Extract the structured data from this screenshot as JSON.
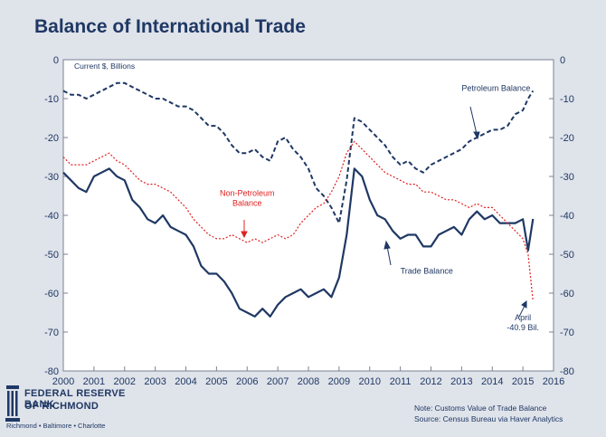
{
  "title": "Balance of International Trade",
  "logo": {
    "line1": "FEDERAL RESERVE BANK",
    "line2": "OF RICHMOND",
    "cities": "Richmond • Baltimore • Charlotte"
  },
  "notes": {
    "note": "Note: Customs Value of Trade Balance",
    "source": "Source: Census Bureau via Haver Analytics"
  },
  "colors": {
    "background": "#dfe3ea",
    "navy": "#1f3864",
    "red": "#e02020"
  },
  "chart_data": {
    "type": "line",
    "ylabel": "Current $, Billions",
    "ylim": [
      -80,
      0
    ],
    "xlim": [
      2000,
      2016
    ],
    "y_ticks": [
      "0",
      "-10",
      "-20",
      "-30",
      "-40",
      "-50",
      "-60",
      "-70",
      "-80"
    ],
    "x_ticks": [
      "2000",
      "2001",
      "2002",
      "2003",
      "2004",
      "2005",
      "2006",
      "2007",
      "2008",
      "2009",
      "2010",
      "2011",
      "2012",
      "2013",
      "2014",
      "2015",
      "2016"
    ],
    "grid": false,
    "series": [
      {
        "name": "Trade Balance",
        "style": "solid",
        "color": "#1f3864",
        "x": [
          2000.0,
          2000.25,
          2000.5,
          2000.75,
          2001.0,
          2001.25,
          2001.5,
          2001.75,
          2002.0,
          2002.25,
          2002.5,
          2002.75,
          2003.0,
          2003.25,
          2003.5,
          2003.75,
          2004.0,
          2004.25,
          2004.5,
          2004.75,
          2005.0,
          2005.25,
          2005.5,
          2005.75,
          2006.0,
          2006.25,
          2006.5,
          2006.75,
          2007.0,
          2007.25,
          2007.5,
          2007.75,
          2008.0,
          2008.25,
          2008.5,
          2008.75,
          2009.0,
          2009.25,
          2009.5,
          2009.75,
          2010.0,
          2010.25,
          2010.5,
          2010.75,
          2011.0,
          2011.25,
          2011.5,
          2011.75,
          2012.0,
          2012.25,
          2012.5,
          2012.75,
          2013.0,
          2013.25,
          2013.5,
          2013.75,
          2014.0,
          2014.25,
          2014.5,
          2014.75,
          2015.0,
          2015.17,
          2015.33
        ],
        "values": [
          -29,
          -31,
          -33,
          -34,
          -30,
          -29,
          -28,
          -30,
          -31,
          -36,
          -38,
          -41,
          -42,
          -40,
          -43,
          -44,
          -45,
          -48,
          -53,
          -55,
          -55,
          -57,
          -60,
          -64,
          -65,
          -66,
          -64,
          -66,
          -63,
          -61,
          -60,
          -59,
          -61,
          -60,
          -59,
          -61,
          -56,
          -45,
          -28,
          -30,
          -36,
          -40,
          -41,
          -44,
          -46,
          -45,
          -45,
          -48,
          -48,
          -45,
          -44,
          -43,
          -45,
          -41,
          -39,
          -41,
          -40,
          -42,
          -42,
          -42,
          -41,
          -49,
          -40.9
        ]
      },
      {
        "name": "Petroleum Balance",
        "style": "dashed",
        "color": "#1f3864",
        "x": [
          2000.0,
          2000.25,
          2000.5,
          2000.75,
          2001.0,
          2001.25,
          2001.5,
          2001.75,
          2002.0,
          2002.25,
          2002.5,
          2002.75,
          2003.0,
          2003.25,
          2003.5,
          2003.75,
          2004.0,
          2004.25,
          2004.5,
          2004.75,
          2005.0,
          2005.25,
          2005.5,
          2005.75,
          2006.0,
          2006.25,
          2006.5,
          2006.75,
          2007.0,
          2007.25,
          2007.5,
          2007.75,
          2008.0,
          2008.25,
          2008.5,
          2008.75,
          2009.0,
          2009.25,
          2009.5,
          2009.75,
          2010.0,
          2010.25,
          2010.5,
          2010.75,
          2011.0,
          2011.25,
          2011.5,
          2011.75,
          2012.0,
          2012.25,
          2012.5,
          2012.75,
          2013.0,
          2013.25,
          2013.5,
          2013.75,
          2014.0,
          2014.25,
          2014.5,
          2014.75,
          2015.0,
          2015.17,
          2015.33
        ],
        "values": [
          -8,
          -9,
          -9,
          -10,
          -9,
          -8,
          -7,
          -6,
          -6,
          -7,
          -8,
          -9,
          -10,
          -10,
          -11,
          -12,
          -12,
          -13,
          -15,
          -17,
          -17,
          -19,
          -22,
          -24,
          -24,
          -23,
          -25,
          -26,
          -21,
          -20,
          -23,
          -25,
          -28,
          -33,
          -35,
          -38,
          -42,
          -31,
          -15,
          -16,
          -18,
          -20,
          -22,
          -25,
          -27,
          -26,
          -28,
          -29,
          -27,
          -26,
          -25,
          -24,
          -23,
          -21,
          -20,
          -19,
          -18,
          -18,
          -17,
          -14,
          -13,
          -10,
          -8
        ]
      },
      {
        "name": "Non-Petroleum Balance",
        "style": "dotted",
        "color": "#e02020",
        "x": [
          2000.0,
          2000.25,
          2000.5,
          2000.75,
          2001.0,
          2001.25,
          2001.5,
          2001.75,
          2002.0,
          2002.25,
          2002.5,
          2002.75,
          2003.0,
          2003.25,
          2003.5,
          2003.75,
          2004.0,
          2004.25,
          2004.5,
          2004.75,
          2005.0,
          2005.25,
          2005.5,
          2005.75,
          2006.0,
          2006.25,
          2006.5,
          2006.75,
          2007.0,
          2007.25,
          2007.5,
          2007.75,
          2008.0,
          2008.25,
          2008.5,
          2008.75,
          2009.0,
          2009.25,
          2009.5,
          2009.75,
          2010.0,
          2010.25,
          2010.5,
          2010.75,
          2011.0,
          2011.25,
          2011.5,
          2011.75,
          2012.0,
          2012.25,
          2012.5,
          2012.75,
          2013.0,
          2013.25,
          2013.5,
          2013.75,
          2014.0,
          2014.25,
          2014.5,
          2014.75,
          2015.0,
          2015.17,
          2015.33
        ],
        "values": [
          -25,
          -27,
          -27,
          -27,
          -26,
          -25,
          -24,
          -26,
          -27,
          -29,
          -31,
          -32,
          -32,
          -33,
          -34,
          -36,
          -38,
          -41,
          -43,
          -45,
          -46,
          -46,
          -45,
          -46,
          -47,
          -46,
          -47,
          -46,
          -45,
          -46,
          -45,
          -42,
          -40,
          -38,
          -37,
          -34,
          -30,
          -24,
          -21,
          -23,
          -25,
          -27,
          -29,
          -30,
          -31,
          -32,
          -32,
          -34,
          -34,
          -35,
          -36,
          -36,
          -37,
          -38,
          -37,
          -38,
          -38,
          -40,
          -42,
          -44,
          -46,
          -50,
          -62
        ]
      }
    ],
    "annotations": [
      {
        "text": "Petroleum Balance",
        "x": 2013.0,
        "y": -8
      },
      {
        "text": "Non-Petroleum",
        "x": 2006.0,
        "y": -35
      },
      {
        "text": "Balance",
        "x": 2006.0,
        "y": -37.5
      },
      {
        "text": "Trade Balance",
        "x": 2011.0,
        "y": -55
      },
      {
        "text": "April",
        "x": 2015.0,
        "y": -67
      },
      {
        "text": "-40.9 Bil.",
        "x": 2015.0,
        "y": -69.5
      }
    ]
  }
}
